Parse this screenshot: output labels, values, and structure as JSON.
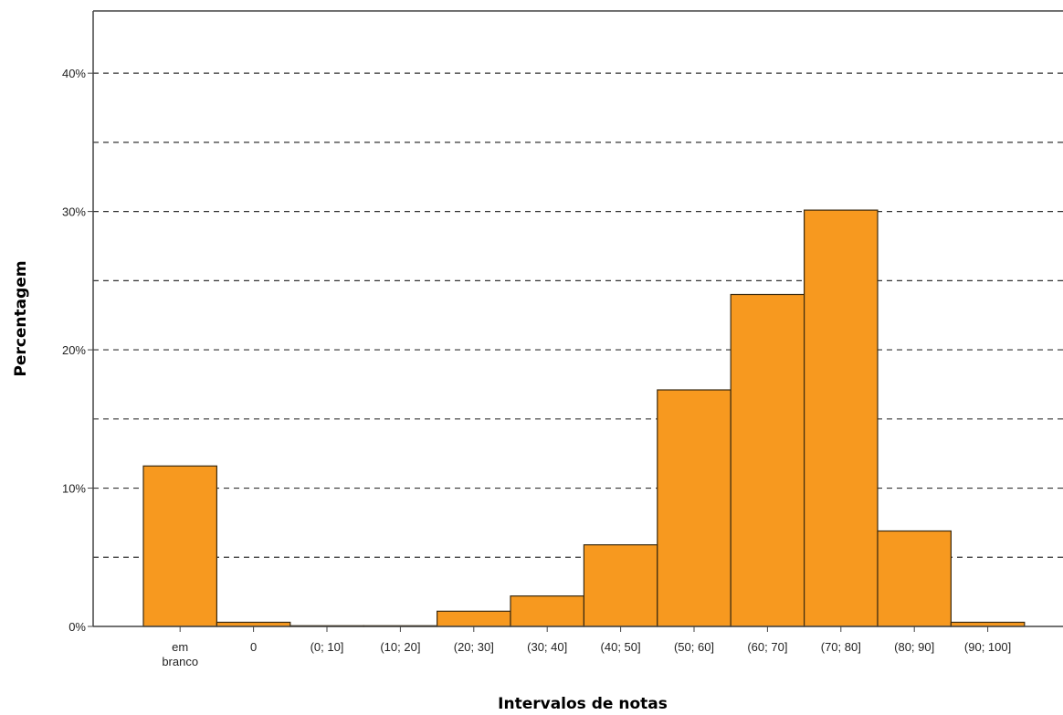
{
  "chart_data": {
    "type": "bar",
    "title": "",
    "xlabel": "Intervalos de notas",
    "ylabel": "Percentagem",
    "categories": [
      [
        "em",
        "branco"
      ],
      [
        "0"
      ],
      [
        "(0; 10]"
      ],
      [
        "(10; 20]"
      ],
      [
        "(20; 30]"
      ],
      [
        "(30; 40]"
      ],
      [
        "(40; 50]"
      ],
      [
        "(50; 60]"
      ],
      [
        "(60; 70]"
      ],
      [
        "(70; 80]"
      ],
      [
        "(80; 90]"
      ],
      [
        "(90; 100]"
      ]
    ],
    "values": [
      11.6,
      0.3,
      0.05,
      0.05,
      1.1,
      2.2,
      5.9,
      17.1,
      24.0,
      30.1,
      6.9,
      0.3
    ],
    "ylim": [
      0,
      44.5
    ],
    "yticks": [
      0,
      10,
      20,
      30,
      40
    ],
    "ytick_labels": [
      "0%",
      "10%",
      "20%",
      "30%",
      "40%"
    ],
    "gridlines": [
      5,
      10,
      15,
      20,
      25,
      30,
      35,
      40
    ],
    "grid": "dashed horizontal",
    "legend": "none",
    "colors": {
      "bar_fill": "#F7991F",
      "bar_stroke": "#3a2a10",
      "grid": "#333333",
      "axis": "#444444"
    }
  }
}
